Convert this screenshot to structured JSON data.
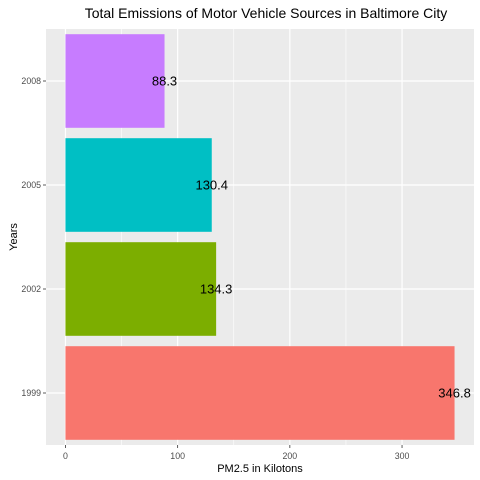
{
  "chart_data": {
    "type": "bar",
    "orientation": "horizontal",
    "title": "Total Emissions of Motor Vehicle Sources in Baltimore City",
    "xlabel": "PM2.5 in Kilotons",
    "ylabel": "Years",
    "categories": [
      "1999",
      "2002",
      "2005",
      "2008"
    ],
    "values": [
      346.8,
      134.3,
      130.4,
      88.3
    ],
    "data_labels": [
      "346.8",
      "134.3",
      "130.4",
      "88.3"
    ],
    "colors": [
      "#F8766D",
      "#7CAE00",
      "#00BFC4",
      "#C77CFF"
    ],
    "xlim": [
      -17.34,
      364.14
    ],
    "xticks": [
      0,
      100,
      200,
      300
    ],
    "grid": true,
    "legend": "none",
    "panel_background": "#EBEBEB",
    "grid_color": "#FFFFFF"
  }
}
